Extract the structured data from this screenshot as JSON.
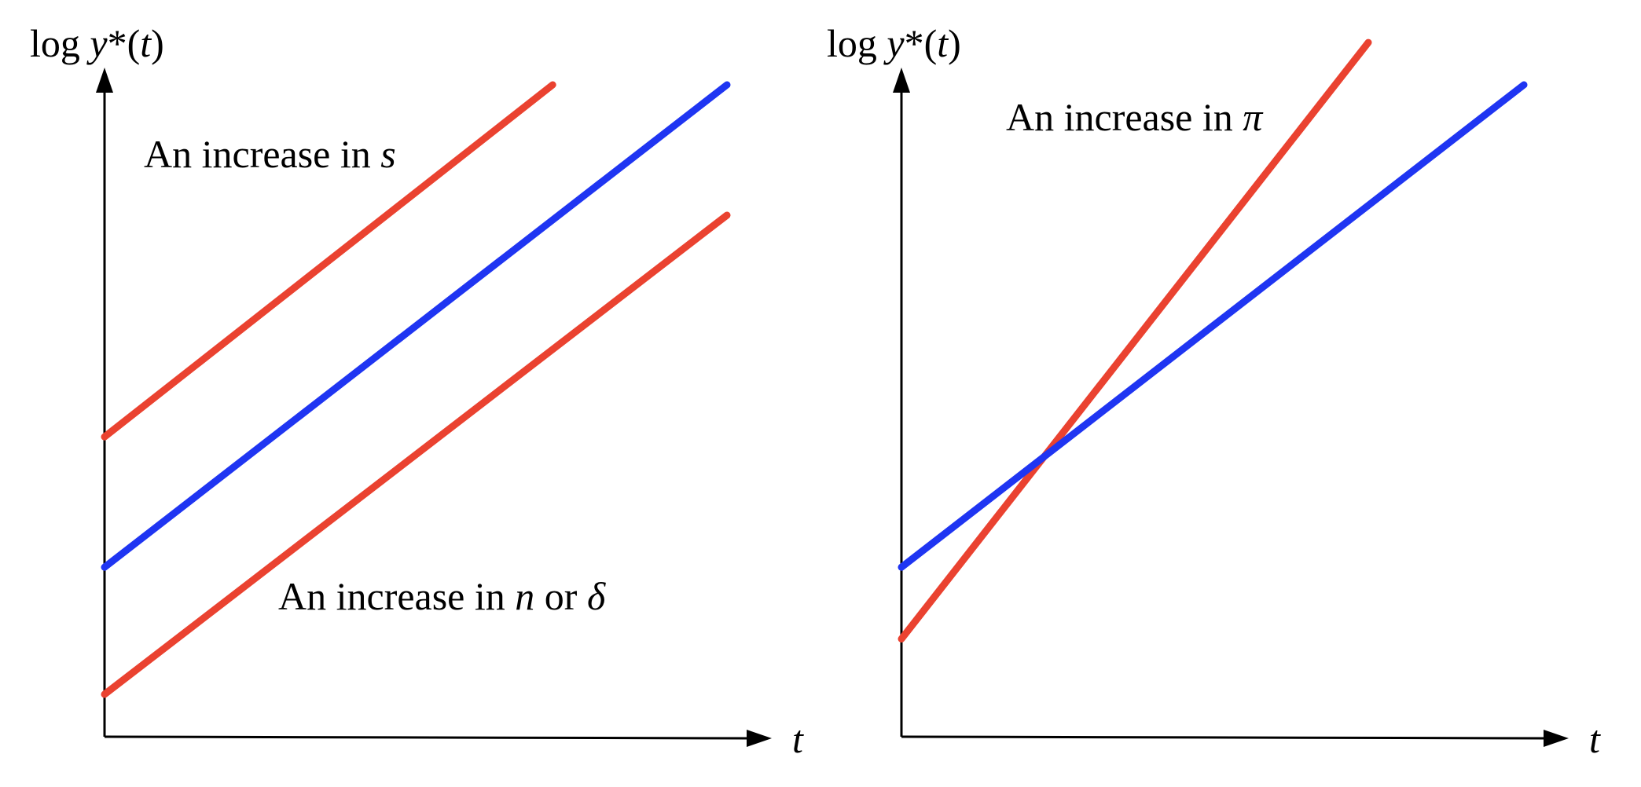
{
  "colors": {
    "baseline": "#1f35f2",
    "shifted": "#ea4230",
    "axis": "#000000"
  },
  "chart_data": [
    {
      "type": "line",
      "title": "",
      "xlabel": "t",
      "ylabel": {
        "prefix": "log ",
        "var": "y",
        "suffix": "*(",
        "arg": "t",
        "close": ")"
      },
      "x_range": [
        0,
        1
      ],
      "y_range": [
        0,
        1
      ],
      "grid": false,
      "legend": "none",
      "series": [
        {
          "color_key": "shifted",
          "points": [
            [
              0,
              0.46
            ],
            [
              0.72,
              1.0
            ]
          ]
        },
        {
          "color_key": "baseline",
          "points": [
            [
              0,
              0.26
            ],
            [
              1.0,
              1.0
            ]
          ]
        },
        {
          "color_key": "shifted",
          "points": [
            [
              0,
              0.065
            ],
            [
              1.0,
              0.8
            ]
          ]
        }
      ],
      "annotations": [
        {
          "text_prefix": "An increase in ",
          "var1": "s",
          "mid": "",
          "var2": "",
          "anchor": [
            0.06,
            0.895
          ]
        },
        {
          "text_prefix": "An increase in ",
          "var1": "n",
          "mid": " or ",
          "var2": "δ",
          "anchor": [
            0.28,
            0.2
          ]
        }
      ]
    },
    {
      "type": "line",
      "title": "",
      "xlabel": "t",
      "ylabel": {
        "prefix": "log ",
        "var": "y",
        "suffix": "*(",
        "arg": "t",
        "close": ")"
      },
      "x_range": [
        0,
        1
      ],
      "y_range": [
        0,
        1
      ],
      "grid": false,
      "legend": "none",
      "series": [
        {
          "color_key": "shifted",
          "points": [
            [
              0,
              0.15
            ],
            [
              0.75,
              1.065
            ]
          ]
        },
        {
          "color_key": "baseline",
          "points": [
            [
              0,
              0.26
            ],
            [
              1.0,
              1.0
            ]
          ]
        }
      ],
      "annotations": [
        {
          "text_prefix": "An increase in ",
          "var1": "π",
          "mid": "",
          "var2": "",
          "anchor": [
            0.17,
            0.95
          ]
        }
      ]
    }
  ]
}
